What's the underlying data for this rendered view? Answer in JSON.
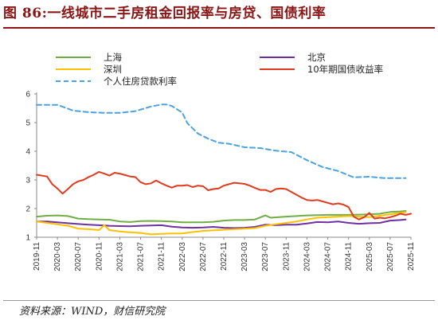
{
  "title": "图 86:一线城市二手房租金回报率与房贷、国债利率",
  "source": "资料来源：WIND，财信研究院",
  "chart_data": {
    "type": "line",
    "title": "图 86:一线城市二手房租金回报率与房贷、国债利率",
    "xlabel": "",
    "ylabel": "",
    "ylim": [
      1,
      6
    ],
    "yticks": [
      "1",
      "2",
      "3",
      "4",
      "5",
      "6"
    ],
    "xlim": [
      "2019-11",
      "2025-11"
    ],
    "xticks": [
      "2019-11",
      "2020-03",
      "2020-07",
      "2020-11",
      "2021-03",
      "2021-07",
      "2021-11",
      "2022-03",
      "2022-07",
      "2022-11",
      "2023-03",
      "2023-07",
      "2023-11",
      "2024-03",
      "2024-07",
      "2024-11",
      "2025-03",
      "2025-07",
      "2025-11"
    ],
    "legend": "top",
    "grid": false,
    "series": [
      {
        "name": "上海",
        "color": "#70ad47",
        "width": 2,
        "dash": "",
        "points": [
          [
            "2019-11",
            1.72
          ],
          [
            "2020-01",
            1.75
          ],
          [
            "2020-03",
            1.76
          ],
          [
            "2020-05",
            1.74
          ],
          [
            "2020-07",
            1.65
          ],
          [
            "2020-09",
            1.63
          ],
          [
            "2020-11",
            1.62
          ],
          [
            "2021-01",
            1.61
          ],
          [
            "2021-03",
            1.55
          ],
          [
            "2021-05",
            1.53
          ],
          [
            "2021-07",
            1.56
          ],
          [
            "2021-09",
            1.57
          ],
          [
            "2021-11",
            1.56
          ],
          [
            "2022-01",
            1.55
          ],
          [
            "2022-03",
            1.52
          ],
          [
            "2022-05",
            1.52
          ],
          [
            "2022-07",
            1.52
          ],
          [
            "2022-09",
            1.54
          ],
          [
            "2022-11",
            1.58
          ],
          [
            "2023-01",
            1.6
          ],
          [
            "2023-03",
            1.6
          ],
          [
            "2023-05",
            1.62
          ],
          [
            "2023-07",
            1.76
          ],
          [
            "2023-08",
            1.68
          ],
          [
            "2023-11",
            1.72
          ],
          [
            "2024-01",
            1.74
          ],
          [
            "2024-03",
            1.76
          ],
          [
            "2024-05",
            1.77
          ],
          [
            "2024-07",
            1.78
          ],
          [
            "2024-09",
            1.78
          ],
          [
            "2024-11",
            1.78
          ],
          [
            "2025-01",
            1.79
          ],
          [
            "2025-03",
            1.8
          ],
          [
            "2025-05",
            1.82
          ],
          [
            "2025-07",
            1.88
          ],
          [
            "2025-09",
            1.9
          ],
          [
            "2025-10",
            1.92
          ]
        ]
      },
      {
        "name": "北京",
        "color": "#7030a0",
        "width": 2,
        "dash": "",
        "points": [
          [
            "2019-11",
            1.55
          ],
          [
            "2020-01",
            1.55
          ],
          [
            "2020-03",
            1.52
          ],
          [
            "2020-05",
            1.49
          ],
          [
            "2020-07",
            1.46
          ],
          [
            "2020-09",
            1.44
          ],
          [
            "2020-11",
            1.42
          ],
          [
            "2021-01",
            1.4
          ],
          [
            "2021-03",
            1.39
          ],
          [
            "2021-05",
            1.38
          ],
          [
            "2021-07",
            1.4
          ],
          [
            "2021-09",
            1.41
          ],
          [
            "2021-11",
            1.42
          ],
          [
            "2022-01",
            1.37
          ],
          [
            "2022-03",
            1.34
          ],
          [
            "2022-05",
            1.33
          ],
          [
            "2022-07",
            1.34
          ],
          [
            "2022-09",
            1.36
          ],
          [
            "2022-11",
            1.33
          ],
          [
            "2023-01",
            1.32
          ],
          [
            "2023-03",
            1.33
          ],
          [
            "2023-05",
            1.36
          ],
          [
            "2023-07",
            1.44
          ],
          [
            "2023-09",
            1.42
          ],
          [
            "2023-11",
            1.44
          ],
          [
            "2024-01",
            1.44
          ],
          [
            "2024-03",
            1.48
          ],
          [
            "2024-05",
            1.53
          ],
          [
            "2024-07",
            1.52
          ],
          [
            "2024-09",
            1.55
          ],
          [
            "2024-11",
            1.5
          ],
          [
            "2025-01",
            1.47
          ],
          [
            "2025-03",
            1.49
          ],
          [
            "2025-05",
            1.5
          ],
          [
            "2025-07",
            1.58
          ],
          [
            "2025-09",
            1.6
          ],
          [
            "2025-10",
            1.62
          ]
        ]
      },
      {
        "name": "深圳",
        "color": "#ffc000",
        "width": 2,
        "dash": "",
        "points": [
          [
            "2019-11",
            1.55
          ],
          [
            "2020-01",
            1.5
          ],
          [
            "2020-03",
            1.45
          ],
          [
            "2020-05",
            1.4
          ],
          [
            "2020-07",
            1.3
          ],
          [
            "2020-09",
            1.28
          ],
          [
            "2020-11",
            1.25
          ],
          [
            "2020-12",
            1.42
          ],
          [
            "2021-01",
            1.25
          ],
          [
            "2021-03",
            1.2
          ],
          [
            "2021-05",
            1.17
          ],
          [
            "2021-07",
            1.15
          ],
          [
            "2021-09",
            1.1
          ],
          [
            "2021-11",
            1.12
          ],
          [
            "2022-01",
            1.13
          ],
          [
            "2022-03",
            1.13
          ],
          [
            "2022-05",
            1.18
          ],
          [
            "2022-07",
            1.22
          ],
          [
            "2022-09",
            1.24
          ],
          [
            "2022-11",
            1.26
          ],
          [
            "2023-01",
            1.28
          ],
          [
            "2023-03",
            1.3
          ],
          [
            "2023-05",
            1.32
          ],
          [
            "2023-07",
            1.4
          ],
          [
            "2023-09",
            1.45
          ],
          [
            "2023-11",
            1.5
          ],
          [
            "2024-01",
            1.55
          ],
          [
            "2024-03",
            1.62
          ],
          [
            "2024-05",
            1.68
          ],
          [
            "2024-07",
            1.7
          ],
          [
            "2024-09",
            1.72
          ],
          [
            "2024-11",
            1.74
          ],
          [
            "2025-01",
            1.72
          ],
          [
            "2025-03",
            1.7
          ],
          [
            "2025-05",
            1.75
          ],
          [
            "2025-07",
            1.8
          ],
          [
            "2025-09",
            1.85
          ],
          [
            "2025-10",
            1.88
          ]
        ]
      },
      {
        "name": "10年期国债收益率",
        "color": "#e03a1e",
        "width": 2,
        "dash": "",
        "points": [
          [
            "2019-11",
            3.18
          ],
          [
            "2020-01",
            3.12
          ],
          [
            "2020-02",
            2.85
          ],
          [
            "2020-03",
            2.7
          ],
          [
            "2020-04",
            2.52
          ],
          [
            "2020-05",
            2.68
          ],
          [
            "2020-06",
            2.85
          ],
          [
            "2020-07",
            2.95
          ],
          [
            "2020-08",
            3.0
          ],
          [
            "2020-09",
            3.1
          ],
          [
            "2020-10",
            3.18
          ],
          [
            "2020-11",
            3.28
          ],
          [
            "2020-12",
            3.22
          ],
          [
            "2021-01",
            3.15
          ],
          [
            "2021-02",
            3.25
          ],
          [
            "2021-03",
            3.22
          ],
          [
            "2021-04",
            3.17
          ],
          [
            "2021-05",
            3.12
          ],
          [
            "2021-06",
            3.1
          ],
          [
            "2021-07",
            2.92
          ],
          [
            "2021-08",
            2.85
          ],
          [
            "2021-09",
            2.88
          ],
          [
            "2021-10",
            2.98
          ],
          [
            "2021-11",
            2.88
          ],
          [
            "2021-12",
            2.8
          ],
          [
            "2022-01",
            2.73
          ],
          [
            "2022-02",
            2.8
          ],
          [
            "2022-03",
            2.8
          ],
          [
            "2022-04",
            2.82
          ],
          [
            "2022-05",
            2.75
          ],
          [
            "2022-06",
            2.8
          ],
          [
            "2022-07",
            2.78
          ],
          [
            "2022-08",
            2.64
          ],
          [
            "2022-09",
            2.68
          ],
          [
            "2022-10",
            2.7
          ],
          [
            "2022-11",
            2.8
          ],
          [
            "2022-12",
            2.85
          ],
          [
            "2023-01",
            2.9
          ],
          [
            "2023-02",
            2.88
          ],
          [
            "2023-03",
            2.86
          ],
          [
            "2023-04",
            2.8
          ],
          [
            "2023-05",
            2.72
          ],
          [
            "2023-06",
            2.65
          ],
          [
            "2023-07",
            2.65
          ],
          [
            "2023-08",
            2.58
          ],
          [
            "2023-09",
            2.68
          ],
          [
            "2023-10",
            2.7
          ],
          [
            "2023-11",
            2.68
          ],
          [
            "2023-12",
            2.58
          ],
          [
            "2024-01",
            2.48
          ],
          [
            "2024-02",
            2.38
          ],
          [
            "2024-03",
            2.3
          ],
          [
            "2024-04",
            2.28
          ],
          [
            "2024-05",
            2.3
          ],
          [
            "2024-06",
            2.25
          ],
          [
            "2024-07",
            2.2
          ],
          [
            "2024-08",
            2.15
          ],
          [
            "2024-09",
            2.18
          ],
          [
            "2024-10",
            2.14
          ],
          [
            "2024-11",
            2.05
          ],
          [
            "2024-12",
            1.72
          ],
          [
            "2025-01",
            1.62
          ],
          [
            "2025-02",
            1.7
          ],
          [
            "2025-03",
            1.85
          ],
          [
            "2025-04",
            1.65
          ],
          [
            "2025-05",
            1.68
          ],
          [
            "2025-06",
            1.66
          ],
          [
            "2025-07",
            1.7
          ],
          [
            "2025-08",
            1.75
          ],
          [
            "2025-09",
            1.82
          ],
          [
            "2025-10",
            1.78
          ],
          [
            "2025-11",
            1.82
          ]
        ]
      },
      {
        "name": "个人住房贷款利率",
        "color": "#4aa3df",
        "width": 2,
        "dash": "6,4",
        "points": [
          [
            "2019-11",
            5.62
          ],
          [
            "2020-03",
            5.62
          ],
          [
            "2020-06",
            5.42
          ],
          [
            "2020-09",
            5.36
          ],
          [
            "2020-12",
            5.34
          ],
          [
            "2021-03",
            5.34
          ],
          [
            "2021-06",
            5.4
          ],
          [
            "2021-09",
            5.56
          ],
          [
            "2021-11",
            5.63
          ],
          [
            "2021-12",
            5.63
          ],
          [
            "2022-01",
            5.58
          ],
          [
            "2022-03",
            5.35
          ],
          [
            "2022-04",
            4.98
          ],
          [
            "2022-06",
            4.62
          ],
          [
            "2022-08",
            4.44
          ],
          [
            "2022-10",
            4.3
          ],
          [
            "2022-12",
            4.26
          ],
          [
            "2023-03",
            4.14
          ],
          [
            "2023-06",
            4.11
          ],
          [
            "2023-09",
            4.02
          ],
          [
            "2023-12",
            3.97
          ],
          [
            "2024-03",
            3.69
          ],
          [
            "2024-06",
            3.45
          ],
          [
            "2024-09",
            3.31
          ],
          [
            "2024-12",
            3.09
          ],
          [
            "2025-03",
            3.11
          ],
          [
            "2025-06",
            3.06
          ],
          [
            "2025-09",
            3.06
          ],
          [
            "2025-10",
            3.06
          ]
        ]
      }
    ]
  }
}
